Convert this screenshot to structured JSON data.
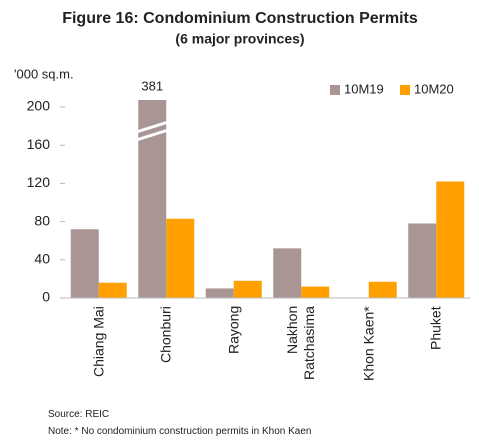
{
  "chart_data": {
    "type": "bar",
    "title": "Figure 16: Condominium Construction Permits",
    "subtitle": "(6 major provinces)",
    "y_axis_label": "'000 sq.m.",
    "categories": [
      "Chiang Mai",
      "Chonburi",
      "Rayong",
      "Nakhon\nRatchasima",
      "Khon Kaen*",
      "Phuket"
    ],
    "series": [
      {
        "name": "10M19",
        "color": "#a89594",
        "values": [
          72,
          381,
          10,
          52,
          0,
          78
        ],
        "value_labels": [
          null,
          "381",
          null,
          null,
          null,
          null
        ]
      },
      {
        "name": "10M20",
        "color": "#ffa000",
        "values": [
          16,
          83,
          18,
          12,
          17,
          122
        ]
      }
    ],
    "ylim": [
      0,
      200
    ],
    "yticks": [
      0,
      40,
      80,
      120,
      160,
      200
    ],
    "legend": "top-right",
    "source": "Source: REIC",
    "note": "Note: * No condominium construction permits in Khon Kaen"
  }
}
